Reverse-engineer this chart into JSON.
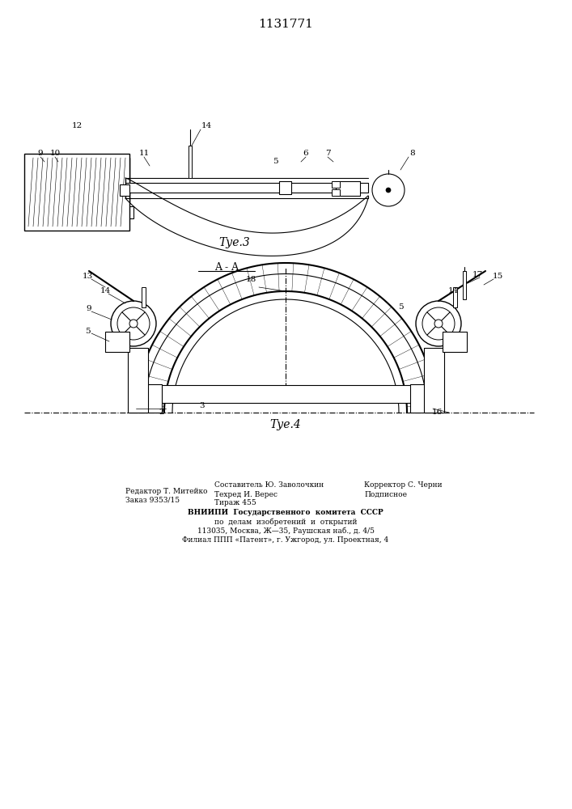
{
  "patent_number": "1131771",
  "fig3_caption": "Τуе.3",
  "fig4_caption": "Τуе.4",
  "section_label": "A - A",
  "footer_line1_left": "Редактор Т. Митейко",
  "footer_line2_left": "Заказ 9353/15",
  "footer_line1_center": "Составитель Ю. Заволочкин",
  "footer_line2_center": "Техред И. Верес",
  "footer_line3_center": "Тираж 455",
  "footer_line1_right": "Корректор С. Черни",
  "footer_line2_right": "Подписное",
  "footer_vnipi": "ВНИИПИ  Государственного  комитета  СССР",
  "footer_po": "по  делам  изобретений  и  открытий",
  "footer_addr": "113035, Москва, Ж—35, Раушская наб., д. 4/5",
  "footer_filial": "Филиал ППП «Патент», г. Ужгород, ул. Проектная, 4",
  "bg_color": "#ffffff",
  "line_color": "#000000",
  "fig_width": 7.07,
  "fig_height": 10.0
}
